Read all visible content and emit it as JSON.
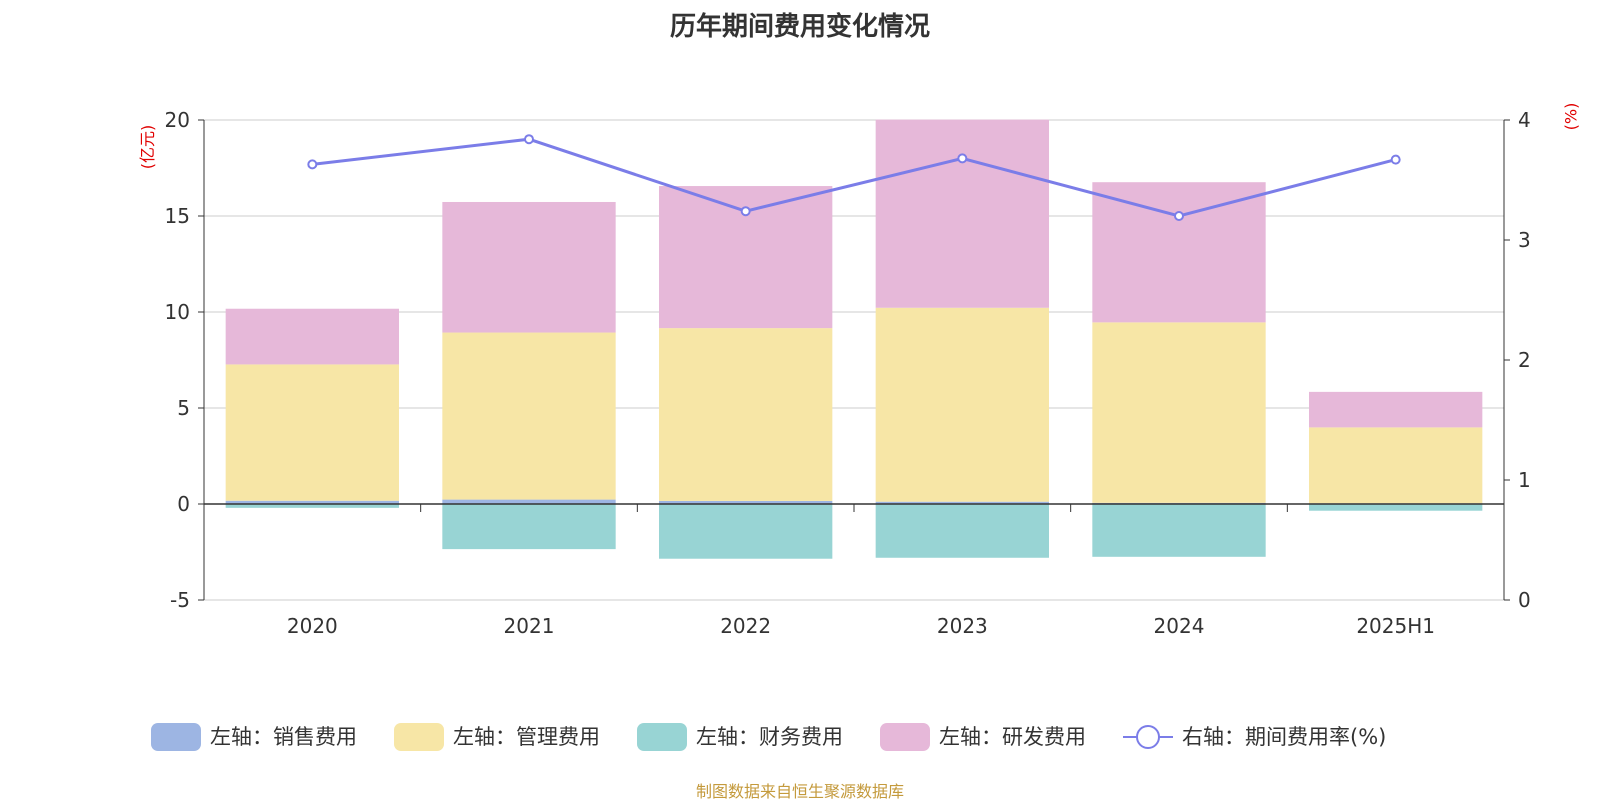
{
  "title": "历年期间费用变化情况",
  "source": "制图数据来自恒生聚源数据库",
  "left_unit": "(亿元)",
  "right_unit": "(%)",
  "colors": {
    "sales": "#9db5e3",
    "admin": "#f7e6a6",
    "finance": "#98d4d4",
    "rd": "#e6b8d9",
    "rate": "#7b7de8",
    "unit": "#e00000",
    "source": "#c49a3c"
  },
  "chart_data": {
    "type": "bar",
    "stacked": true,
    "categories": [
      "2020",
      "2021",
      "2022",
      "2023",
      "2024",
      "2025H1"
    ],
    "series": [
      {
        "name": "左轴：销售费用",
        "axis": "left",
        "values": [
          0.17,
          0.23,
          0.16,
          0.12,
          0.06,
          0.04
        ]
      },
      {
        "name": "左轴：管理费用",
        "axis": "left",
        "values": [
          7.1,
          8.7,
          9.0,
          10.1,
          9.4,
          3.95
        ]
      },
      {
        "name": "左轴：财务费用",
        "axis": "left",
        "values": [
          -0.2,
          -2.35,
          -2.85,
          -2.8,
          -2.75,
          -0.35
        ]
      },
      {
        "name": "左轴：研发费用",
        "axis": "left",
        "values": [
          2.9,
          6.8,
          7.4,
          9.8,
          7.3,
          1.85
        ]
      },
      {
        "name": "右轴：期间费用率(%)",
        "axis": "right",
        "type": "line",
        "values": [
          3.63,
          3.84,
          3.24,
          3.68,
          3.2,
          3.67
        ]
      }
    ],
    "left_axis": {
      "min": -5,
      "max": 20,
      "ticks": [
        -5,
        0,
        5,
        10,
        15,
        20
      ]
    },
    "right_axis": {
      "min": 0,
      "max": 4,
      "ticks": [
        0,
        1,
        2,
        3,
        4
      ]
    },
    "legend_position": "bottom",
    "grid": true
  }
}
